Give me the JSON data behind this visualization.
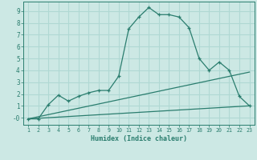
{
  "xlabel": "Humidex (Indice chaleur)",
  "x_values": [
    1,
    2,
    3,
    4,
    5,
    6,
    7,
    8,
    9,
    10,
    11,
    12,
    13,
    14,
    15,
    16,
    17,
    18,
    19,
    20,
    21,
    22,
    23
  ],
  "y_curve": [
    -0.1,
    -0.1,
    1.1,
    1.9,
    1.4,
    1.8,
    2.1,
    2.3,
    2.3,
    3.5,
    7.5,
    8.5,
    9.3,
    8.7,
    8.7,
    8.5,
    7.6,
    5.0,
    4.0,
    4.7,
    4.0,
    1.8,
    1.0
  ],
  "line1_x": [
    1,
    23
  ],
  "line1_y": [
    -0.1,
    1.0
  ],
  "line2_x": [
    1,
    23
  ],
  "line2_y": [
    -0.1,
    3.85
  ],
  "curve_color": "#2a7d6e",
  "bg_color": "#cce8e4",
  "grid_color": "#b0d8d3",
  "ylim": [
    -0.6,
    9.8
  ],
  "xlim": [
    0.5,
    23.5
  ],
  "yticks": [
    0,
    1,
    2,
    3,
    4,
    5,
    6,
    7,
    8,
    9
  ],
  "ytick_labels": [
    "-0",
    "1",
    "2",
    "3",
    "4",
    "5",
    "6",
    "7",
    "8",
    "9"
  ],
  "xticks": [
    1,
    2,
    3,
    4,
    5,
    6,
    7,
    8,
    9,
    10,
    11,
    12,
    13,
    14,
    15,
    16,
    17,
    18,
    19,
    20,
    21,
    22,
    23
  ]
}
